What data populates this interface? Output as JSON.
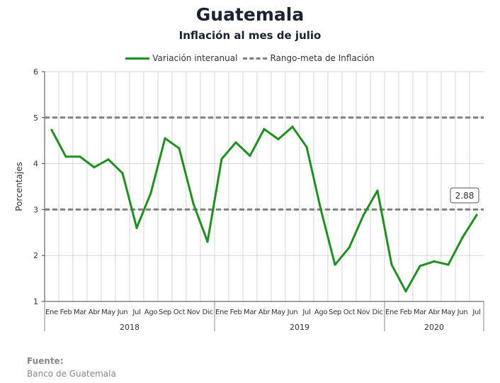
{
  "chart_data": {
    "type": "line",
    "title": "Guatemala",
    "subtitle": "Inflación al mes de julio",
    "ylabel": "Porcentajes",
    "ylim": [
      1,
      6
    ],
    "yticks": [
      "1",
      "2",
      "3",
      "4",
      "5",
      "6"
    ],
    "grid": true,
    "legend_position": "top",
    "categories": [
      "Ene",
      "Feb",
      "Mar",
      "Abr",
      "May",
      "Jun",
      "Jul",
      "Ago",
      "Sep",
      "Oct",
      "Nov",
      "Dic",
      "Ene",
      "Feb",
      "Mar",
      "Abr",
      "May",
      "Jun",
      "Jul",
      "Ago",
      "Sep",
      "Oct",
      "Nov",
      "Dic",
      "Ene",
      "Feb",
      "Mar",
      "Abr",
      "May",
      "Jun",
      "Jul"
    ],
    "years": [
      {
        "label": "2018",
        "count": 12
      },
      {
        "label": "2019",
        "count": 12
      },
      {
        "label": "2020",
        "count": 7
      }
    ],
    "series": [
      {
        "name": "Variación interanual",
        "color": "#1f8f1f",
        "values": [
          4.73,
          4.15,
          4.15,
          3.92,
          4.09,
          3.79,
          2.6,
          3.36,
          4.55,
          4.33,
          3.13,
          2.3,
          4.1,
          4.46,
          4.17,
          4.75,
          4.53,
          4.8,
          4.36,
          3.0,
          1.8,
          2.17,
          2.87,
          3.41,
          1.8,
          1.22,
          1.77,
          1.87,
          1.8,
          2.39,
          2.88
        ]
      },
      {
        "name": "Rango-meta de Inflación",
        "color": "#808080",
        "style": "dashed",
        "lines": [
          5,
          3
        ]
      }
    ],
    "annotation": {
      "label": "2.88",
      "index": 30
    }
  },
  "source": {
    "label": "Fuente:",
    "value": "Banco de Guatemala"
  }
}
